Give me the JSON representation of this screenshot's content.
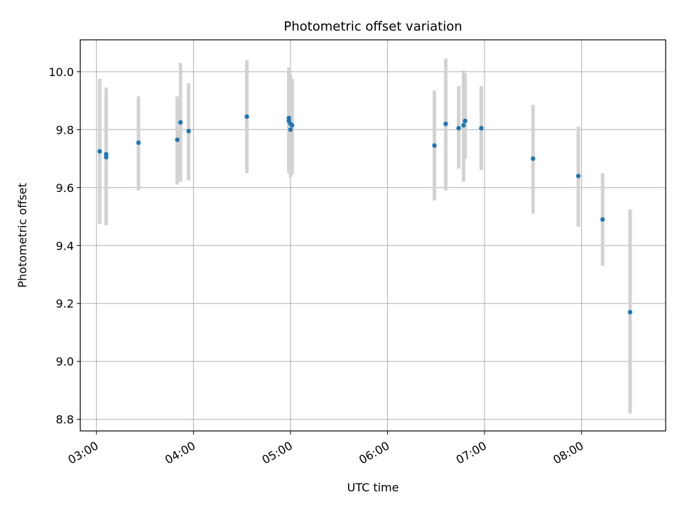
{
  "chart_data": {
    "type": "scatter",
    "title": "Photometric offset variation",
    "xlabel": "UTC time",
    "ylabel": "Photometric offset",
    "x_unit": "UTC time (hours)",
    "xlim": [
      "02:50",
      "08:52"
    ],
    "ylim": [
      8.76,
      10.11
    ],
    "x_ticks": [
      "03:00",
      "04:00",
      "05:00",
      "06:00",
      "07:00",
      "08:00"
    ],
    "y_ticks": [
      "8.8",
      "9.0",
      "9.2",
      "9.4",
      "9.6",
      "9.8",
      "10.0"
    ],
    "grid": true,
    "colors": {
      "marker": "#1f77b4",
      "errorbar": "#d3d3d3",
      "grid": "#b0b0b0"
    },
    "points": [
      {
        "x": "03:02",
        "y": 9.725,
        "ylo": 9.475,
        "yhi": 9.975
      },
      {
        "x": "03:06",
        "y": 9.715,
        "ylo": 9.47,
        "yhi": 9.945
      },
      {
        "x": "03:06",
        "y": 9.705,
        "ylo": 9.47,
        "yhi": 9.93
      },
      {
        "x": "03:26",
        "y": 9.755,
        "ylo": 9.59,
        "yhi": 9.915
      },
      {
        "x": "03:50",
        "y": 9.765,
        "ylo": 9.61,
        "yhi": 9.915
      },
      {
        "x": "03:52",
        "y": 9.825,
        "ylo": 9.62,
        "yhi": 10.03
      },
      {
        "x": "03:57",
        "y": 9.795,
        "ylo": 9.625,
        "yhi": 9.96
      },
      {
        "x": "04:33",
        "y": 9.845,
        "ylo": 9.65,
        "yhi": 10.04
      },
      {
        "x": "04:59",
        "y": 9.84,
        "ylo": 9.65,
        "yhi": 10.015
      },
      {
        "x": "04:59",
        "y": 9.83,
        "ylo": 9.66,
        "yhi": 10.0
      },
      {
        "x": "05:00",
        "y": 9.82,
        "ylo": 9.64,
        "yhi": 9.99
      },
      {
        "x": "05:00",
        "y": 9.8,
        "ylo": 9.635,
        "yhi": 9.965
      },
      {
        "x": "05:01",
        "y": 9.815,
        "ylo": 9.645,
        "yhi": 9.975
      },
      {
        "x": "06:29",
        "y": 9.745,
        "ylo": 9.555,
        "yhi": 9.935
      },
      {
        "x": "06:36",
        "y": 9.82,
        "ylo": 9.59,
        "yhi": 10.045
      },
      {
        "x": "06:44",
        "y": 9.805,
        "ylo": 9.665,
        "yhi": 9.95
      },
      {
        "x": "06:47",
        "y": 9.815,
        "ylo": 9.62,
        "yhi": 10.005
      },
      {
        "x": "06:48",
        "y": 9.83,
        "ylo": 9.7,
        "yhi": 9.995
      },
      {
        "x": "06:58",
        "y": 9.805,
        "ylo": 9.66,
        "yhi": 9.95
      },
      {
        "x": "07:30",
        "y": 9.7,
        "ylo": 9.51,
        "yhi": 9.885
      },
      {
        "x": "07:58",
        "y": 9.64,
        "ylo": 9.465,
        "yhi": 9.81
      },
      {
        "x": "08:13",
        "y": 9.49,
        "ylo": 9.33,
        "yhi": 9.65
      },
      {
        "x": "08:30",
        "y": 9.17,
        "ylo": 8.82,
        "yhi": 9.525
      }
    ]
  }
}
